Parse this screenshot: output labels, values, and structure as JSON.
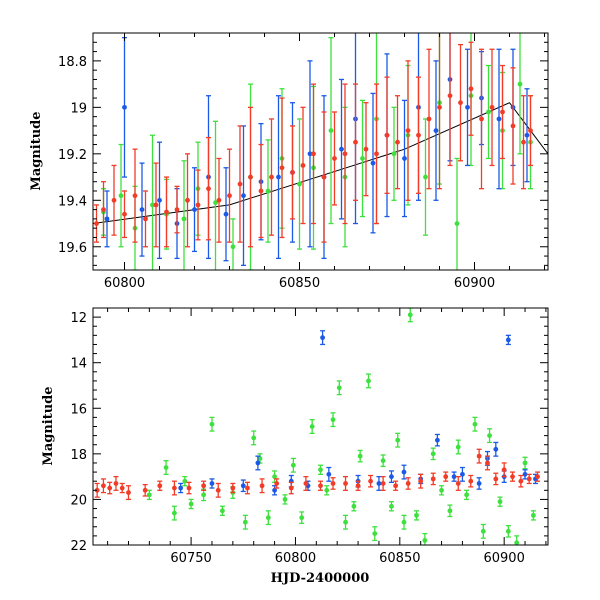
{
  "colors": {
    "green": "#3ee03e",
    "blue": "#1a5ae6",
    "red": "#f23c28",
    "trend": "#000000"
  },
  "chart_data": [
    {
      "type": "scatter",
      "panel": "top",
      "xlabel": "",
      "ylabel": "Magnitude",
      "xlim": [
        60791,
        60921
      ],
      "ylim": [
        19.7,
        18.68
      ],
      "y_inverted": true,
      "x_ticks": [
        60800,
        60850,
        60900
      ],
      "x_tick_labels": [
        "60800",
        "60850",
        "60900"
      ],
      "y_ticks": [
        18.8,
        19.0,
        19.2,
        19.4,
        19.6
      ],
      "y_tick_labels": [
        "18.8",
        "19",
        "19.2",
        "19.4",
        "19.6"
      ],
      "trend_line": {
        "x": [
          60791,
          60830,
          60880,
          60910,
          60921
        ],
        "y": [
          19.5,
          19.42,
          19.18,
          18.98,
          19.2
        ]
      },
      "series": [
        {
          "color": "green",
          "x": [
            60794,
            60799,
            60803,
            60808,
            60812,
            60817,
            60821,
            60826,
            60831,
            60836,
            60841,
            60845,
            60850,
            60854,
            60859,
            60863,
            60868,
            60872,
            60877,
            60881,
            60886,
            60890,
            60895,
            60899,
            60904,
            60908,
            60913,
            60916
          ],
          "y": [
            19.45,
            19.38,
            19.52,
            19.42,
            19.46,
            19.48,
            19.35,
            19.41,
            19.6,
            19.3,
            19.36,
            19.22,
            19.33,
            19.26,
            19.1,
            19.3,
            19.22,
            19.05,
            19.2,
            19.12,
            19.3,
            18.98,
            19.5,
            18.95,
            19.02,
            19.1,
            18.9,
            19.15
          ],
          "err": [
            0.1,
            0.22,
            0.18,
            0.3,
            0.15,
            0.25,
            0.2,
            0.35,
            0.12,
            0.4,
            0.22,
            0.3,
            0.28,
            0.35,
            0.4,
            0.3,
            0.25,
            0.45,
            0.2,
            0.3,
            0.25,
            0.35,
            0.28,
            0.3,
            0.2,
            0.25,
            0.3,
            0.2
          ]
        },
        {
          "color": "blue",
          "x": [
            60795,
            60800,
            60805,
            60810,
            60815,
            60820,
            60824,
            60829,
            60834,
            60839,
            60844,
            60848,
            60853,
            60857,
            60862,
            60866,
            60871,
            60875,
            60880,
            60884,
            60889,
            60893,
            60898,
            60902,
            60907,
            60911,
            60915
          ],
          "y": [
            19.48,
            19.0,
            19.44,
            19.4,
            19.5,
            19.44,
            19.3,
            19.46,
            19.38,
            19.32,
            19.3,
            19.28,
            19.2,
            19.3,
            19.18,
            19.05,
            19.24,
            19.12,
            19.22,
            19.0,
            19.1,
            18.88,
            19.0,
            18.96,
            19.05,
            19.0,
            19.12
          ],
          "err": [
            0.12,
            0.3,
            0.2,
            0.25,
            0.15,
            0.18,
            0.35,
            0.2,
            0.3,
            0.25,
            0.35,
            0.3,
            0.4,
            0.35,
            0.3,
            0.45,
            0.3,
            0.35,
            0.25,
            0.4,
            0.3,
            0.35,
            0.25,
            0.2,
            0.3,
            0.25,
            0.2
          ]
        },
        {
          "color": "red",
          "x": [
            60792,
            60794,
            60797,
            60800,
            60803,
            60806,
            60809,
            60812,
            60815,
            60818,
            60821,
            60824,
            60827,
            60830,
            60833,
            60836,
            60839,
            60842,
            60845,
            60848,
            60851,
            60854,
            60857,
            60860,
            60863,
            60866,
            60869,
            60872,
            60875,
            60878,
            60881,
            60884,
            60887,
            60890,
            60893,
            60896,
            60899,
            60902,
            60905,
            60908,
            60911,
            60914,
            60916
          ],
          "y": [
            19.5,
            19.44,
            19.4,
            19.46,
            19.38,
            19.48,
            19.42,
            19.45,
            19.44,
            19.4,
            19.42,
            19.35,
            19.4,
            19.38,
            19.33,
            19.3,
            19.36,
            19.3,
            19.26,
            19.28,
            19.25,
            19.2,
            19.3,
            19.22,
            19.2,
            19.15,
            19.18,
            19.2,
            19.12,
            19.15,
            19.1,
            19.12,
            19.05,
            19.0,
            18.95,
            18.98,
            18.92,
            19.05,
            19.0,
            19.02,
            19.08,
            19.15,
            19.1
          ],
          "err": [
            0.08,
            0.12,
            0.15,
            0.1,
            0.2,
            0.12,
            0.18,
            0.15,
            0.1,
            0.2,
            0.15,
            0.22,
            0.18,
            0.2,
            0.25,
            0.3,
            0.2,
            0.25,
            0.3,
            0.2,
            0.25,
            0.3,
            0.28,
            0.2,
            0.3,
            0.25,
            0.2,
            0.3,
            0.25,
            0.2,
            0.3,
            0.25,
            0.3,
            0.35,
            0.3,
            0.25,
            0.2,
            0.3,
            0.25,
            0.2,
            0.25,
            0.2,
            0.15
          ]
        }
      ]
    },
    {
      "type": "scatter",
      "panel": "bottom",
      "xlabel": "HJD-2400000",
      "ylabel": "Magnitude",
      "xlim": [
        60703,
        60921
      ],
      "ylim": [
        22,
        11.6
      ],
      "y_inverted": true,
      "x_ticks": [
        60750,
        60800,
        60850,
        60900
      ],
      "x_tick_labels": [
        "60750",
        "60800",
        "60850",
        "60900"
      ],
      "y_ticks": [
        12,
        14,
        16,
        18,
        20,
        22
      ],
      "y_tick_labels": [
        "12",
        "14",
        "16",
        "18",
        "20",
        "22"
      ],
      "series": [
        {
          "color": "green",
          "x": [
            60730,
            60738,
            60742,
            60747,
            60750,
            60756,
            60760,
            60765,
            60770,
            60776,
            60780,
            60783,
            60787,
            60790,
            60795,
            60799,
            60803,
            60808,
            60812,
            60815,
            60818,
            60821,
            60824,
            60828,
            60831,
            60835,
            60838,
            60842,
            60846,
            60849,
            60852,
            60855,
            60858,
            60862,
            60866,
            60870,
            60874,
            60878,
            60882,
            60886,
            60890,
            60893,
            60898,
            60902,
            60906,
            60910,
            60914
          ],
          "y": [
            19.8,
            18.6,
            20.6,
            19.2,
            20.2,
            19.8,
            16.7,
            20.5,
            19.7,
            21.0,
            17.3,
            18.2,
            20.8,
            19.0,
            20.0,
            18.5,
            20.8,
            16.8,
            18.7,
            19.6,
            16.5,
            15.1,
            21.0,
            20.3,
            18.1,
            14.8,
            21.5,
            18.3,
            20.3,
            17.4,
            21.0,
            11.9,
            20.7,
            21.8,
            18.0,
            19.6,
            20.5,
            17.7,
            19.8,
            16.7,
            21.4,
            17.2,
            20.1,
            21.4,
            21.9,
            18.4,
            20.7
          ],
          "err": [
            0.2,
            0.3,
            0.3,
            0.2,
            0.2,
            0.25,
            0.3,
            0.2,
            0.25,
            0.3,
            0.3,
            0.2,
            0.3,
            0.25,
            0.2,
            0.3,
            0.25,
            0.3,
            0.2,
            0.2,
            0.3,
            0.3,
            0.3,
            0.2,
            0.25,
            0.3,
            0.3,
            0.25,
            0.2,
            0.3,
            0.3,
            0.3,
            0.2,
            0.3,
            0.25,
            0.2,
            0.25,
            0.3,
            0.2,
            0.3,
            0.3,
            0.3,
            0.2,
            0.25,
            0.3,
            0.25,
            0.2
          ]
        },
        {
          "color": "blue",
          "x": [
            60745,
            60760,
            60775,
            60782,
            60790,
            60798,
            60806,
            60813,
            60816,
            60830,
            60840,
            60846,
            60852,
            60860,
            60868,
            60876,
            60880,
            60888,
            60892,
            60896,
            60900,
            60902,
            60910,
            60915
          ],
          "y": [
            19.5,
            19.3,
            19.4,
            18.4,
            19.6,
            19.2,
            19.4,
            12.9,
            18.9,
            19.2,
            19.3,
            19.0,
            18.8,
            19.1,
            17.4,
            19.0,
            18.9,
            19.3,
            18.2,
            17.8,
            19.0,
            13.0,
            18.9,
            19.1
          ],
          "err": [
            0.2,
            0.2,
            0.25,
            0.3,
            0.2,
            0.25,
            0.2,
            0.3,
            0.3,
            0.25,
            0.3,
            0.25,
            0.3,
            0.2,
            0.25,
            0.2,
            0.3,
            0.25,
            0.3,
            0.3,
            0.25,
            0.2,
            0.2,
            0.2
          ]
        },
        {
          "color": "red",
          "x": [
            60705,
            60708,
            60711,
            60714,
            60717,
            60720,
            60728,
            60735,
            60742,
            60749,
            60756,
            60763,
            60770,
            60777,
            60784,
            60791,
            60798,
            60805,
            60812,
            60818,
            60824,
            60830,
            60836,
            60842,
            60848,
            60854,
            60860,
            60866,
            60872,
            60878,
            60884,
            60888,
            60892,
            60896,
            60900,
            60904,
            60908,
            60912,
            60916
          ],
          "y": [
            19.6,
            19.4,
            19.5,
            19.3,
            19.5,
            19.7,
            19.6,
            19.4,
            19.5,
            19.5,
            19.4,
            19.6,
            19.5,
            19.5,
            19.4,
            19.3,
            19.5,
            19.3,
            19.4,
            19.3,
            19.3,
            19.4,
            19.2,
            19.3,
            19.4,
            19.3,
            19.2,
            19.1,
            19.0,
            19.3,
            19.2,
            18.1,
            18.4,
            19.1,
            18.7,
            19.0,
            19.2,
            19.1,
            19.0
          ],
          "err": [
            0.3,
            0.3,
            0.25,
            0.3,
            0.2,
            0.3,
            0.25,
            0.2,
            0.3,
            0.25,
            0.2,
            0.3,
            0.2,
            0.25,
            0.3,
            0.2,
            0.25,
            0.3,
            0.2,
            0.25,
            0.3,
            0.2,
            0.25,
            0.3,
            0.2,
            0.25,
            0.3,
            0.25,
            0.2,
            0.3,
            0.25,
            0.3,
            0.3,
            0.25,
            0.3,
            0.2,
            0.25,
            0.2,
            0.2
          ]
        }
      ]
    }
  ]
}
